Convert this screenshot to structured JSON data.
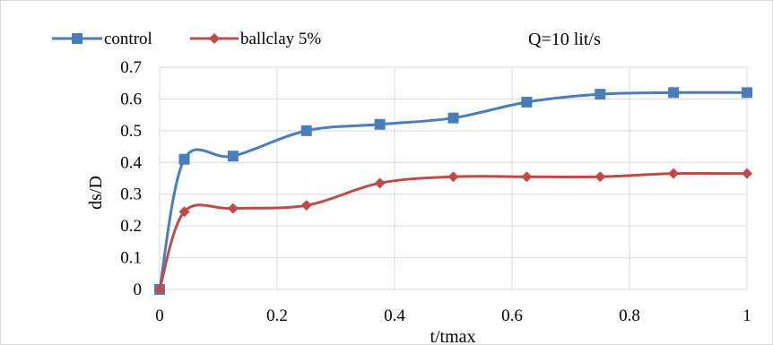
{
  "chart_data": {
    "type": "line",
    "title": "",
    "xlabel": "t/tmax",
    "ylabel": "ds/D",
    "xlim": [
      0,
      1
    ],
    "ylim": [
      0,
      0.7
    ],
    "x_ticks": [
      "0",
      "0.2",
      "0.4",
      "0.6",
      "0.8",
      "1"
    ],
    "y_ticks": [
      "0",
      "0.1",
      "0.2",
      "0.3",
      "0.4",
      "0.5",
      "0.6",
      "0.7"
    ],
    "grid": true,
    "legend_position": "top-left",
    "annotation": "Q=10 lit/s",
    "series": [
      {
        "name": "control",
        "color": "#4a7ebb",
        "marker": "square",
        "x": [
          0,
          0.042,
          0.125,
          0.25,
          0.375,
          0.5,
          0.625,
          0.75,
          0.875,
          1.0
        ],
        "y": [
          0,
          0.41,
          0.42,
          0.5,
          0.52,
          0.54,
          0.59,
          0.615,
          0.62,
          0.62
        ]
      },
      {
        "name": "ballclay 5%",
        "color": "#be4b48",
        "marker": "diamond",
        "x": [
          0,
          0.042,
          0.125,
          0.25,
          0.375,
          0.5,
          0.625,
          0.75,
          0.875,
          1.0
        ],
        "y": [
          0,
          0.245,
          0.255,
          0.265,
          0.335,
          0.355,
          0.355,
          0.355,
          0.365,
          0.365
        ]
      }
    ]
  }
}
